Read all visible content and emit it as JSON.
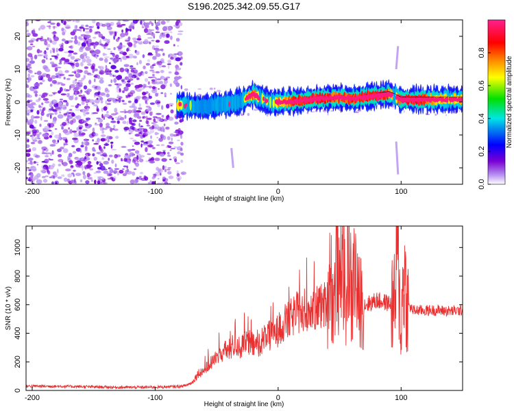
{
  "title": "S196.2025.342.09.55.G17",
  "chart_data": [
    {
      "type": "heatmap",
      "name": "spectrogram",
      "xlabel": "Height of straight line (km)",
      "ylabel": "Frequency (Hz)",
      "xlim": [
        -205,
        150
      ],
      "ylim": [
        -25,
        25
      ],
      "xticks": [
        -200,
        -100,
        0,
        100
      ],
      "xtick_labels": [
        "-200",
        "-100",
        "0",
        "100"
      ],
      "yticks": [
        -20,
        -10,
        0,
        10,
        20
      ],
      "ytick_labels": [
        "-20",
        "-10",
        "0",
        "10",
        "20"
      ],
      "noise_region_x": [
        -205,
        -80
      ],
      "signal_start_x": -82,
      "ridge_x": [
        -82,
        -70,
        -60,
        -50,
        -40,
        -30,
        -20,
        -15,
        -10,
        -5,
        0,
        10,
        20,
        30,
        40,
        50,
        60,
        70,
        80,
        90,
        95,
        100,
        110,
        120,
        130,
        140,
        150
      ],
      "ridge_freq_hz": [
        -0.8,
        -1.2,
        -1.5,
        -0.8,
        -0.5,
        0.2,
        2.5,
        1.2,
        0.5,
        -0.2,
        0.0,
        0.2,
        0.5,
        1.0,
        1.2,
        1.5,
        1.0,
        1.5,
        2.0,
        2.5,
        1.8,
        0.8,
        0.8,
        0.8,
        0.8,
        0.8,
        0.8
      ],
      "ridge_amplitude": [
        0.5,
        0.4,
        0.3,
        0.35,
        0.4,
        0.35,
        0.7,
        0.4,
        0.5,
        0.4,
        0.6,
        0.7,
        0.9,
        0.9,
        0.85,
        0.7,
        0.8,
        0.9,
        0.95,
        0.8,
        0.3,
        0.95,
        0.9,
        0.85,
        0.6,
        0.5,
        0.6
      ],
      "colorbar": {
        "label": "Normalized spectral amplitude",
        "range": [
          0,
          1
        ],
        "ticks": [
          0.0,
          0.2,
          0.4,
          0.6,
          0.8
        ],
        "tick_labels": [
          "0.0",
          "0.2",
          "0.4",
          "0.6",
          "0.8"
        ],
        "colors": [
          "#ffffff",
          "#7b00d4",
          "#0000ff",
          "#00e5e5",
          "#00e000",
          "#ffff00",
          "#ff8000",
          "#ff0000",
          "#ff1f8f"
        ]
      }
    },
    {
      "type": "line",
      "name": "snr",
      "xlabel": "Height of straight line (km)",
      "ylabel": "SNR (10 * v/v)",
      "xlim": [
        -205,
        150
      ],
      "ylim": [
        0,
        1150
      ],
      "xticks": [
        -200,
        -100,
        0,
        100
      ],
      "xtick_labels": [
        "-200",
        "-100",
        "0",
        "100"
      ],
      "yticks": [
        0,
        200,
        400,
        600,
        800,
        1000
      ],
      "ytick_labels": [
        "0",
        "200",
        "400",
        "600",
        "800",
        "1000"
      ],
      "color": "#e83030",
      "x": [
        -205,
        -190,
        -170,
        -150,
        -130,
        -110,
        -90,
        -80,
        -75,
        -70,
        -65,
        -60,
        -55,
        -50,
        -45,
        -40,
        -35,
        -30,
        -25,
        -20,
        -15,
        -10,
        -5,
        0,
        5,
        10,
        15,
        20,
        25,
        30,
        35,
        40,
        42,
        45,
        48,
        50,
        52,
        55,
        57,
        60,
        62,
        65,
        68,
        70,
        75,
        80,
        85,
        90,
        95,
        97,
        100,
        102,
        105,
        110,
        120,
        130,
        140,
        150
      ],
      "y": [
        30,
        30,
        28,
        25,
        22,
        22,
        25,
        28,
        35,
        55,
        120,
        140,
        190,
        230,
        270,
        280,
        320,
        300,
        340,
        310,
        330,
        380,
        380,
        420,
        470,
        500,
        540,
        560,
        575,
        570,
        590,
        610,
        900,
        560,
        1000,
        620,
        1150,
        500,
        1080,
        560,
        900,
        610,
        640,
        600,
        610,
        630,
        620,
        610,
        600,
        1000,
        400,
        850,
        600,
        560,
        560,
        560,
        555,
        560
      ]
    }
  ]
}
